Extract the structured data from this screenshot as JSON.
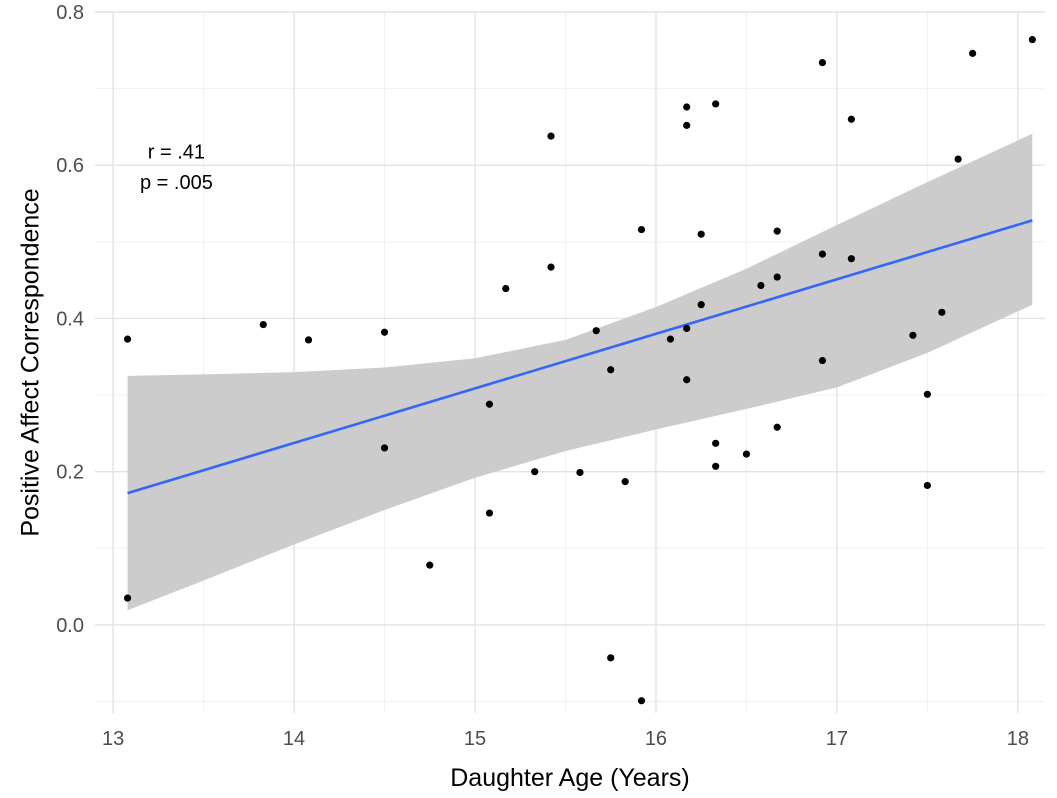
{
  "chart_data": {
    "type": "scatter",
    "title": "",
    "xlabel": "Daughter Age (Years)",
    "ylabel": "Positive Affect Correspondence",
    "xlim": [
      12.9,
      18.15
    ],
    "ylim": [
      -0.115,
      0.8
    ],
    "x_ticks": [
      13,
      14,
      15,
      16,
      17,
      18
    ],
    "x_tick_labels": [
      "13",
      "14",
      "15",
      "16",
      "17",
      "18"
    ],
    "y_ticks": [
      0.0,
      0.2,
      0.4,
      0.6,
      0.8
    ],
    "y_tick_labels": [
      "0.0",
      "0.2",
      "0.4",
      "0.6",
      "0.8"
    ],
    "grid": true,
    "annotation": {
      "line1": "r = .41",
      "line2": "p = .005",
      "x": 13.35,
      "y1": 0.618,
      "y2": 0.578
    },
    "points": [
      {
        "x": 13.08,
        "y": 0.373
      },
      {
        "x": 13.08,
        "y": 0.035
      },
      {
        "x": 13.83,
        "y": 0.392
      },
      {
        "x": 14.08,
        "y": 0.372
      },
      {
        "x": 14.5,
        "y": 0.382
      },
      {
        "x": 14.5,
        "y": 0.231
      },
      {
        "x": 14.75,
        "y": 0.078
      },
      {
        "x": 15.08,
        "y": 0.288
      },
      {
        "x": 15.08,
        "y": 0.146
      },
      {
        "x": 15.17,
        "y": 0.439
      },
      {
        "x": 15.33,
        "y": 0.2
      },
      {
        "x": 15.42,
        "y": 0.638
      },
      {
        "x": 15.42,
        "y": 0.467
      },
      {
        "x": 15.58,
        "y": 0.199
      },
      {
        "x": 15.67,
        "y": 0.384
      },
      {
        "x": 15.75,
        "y": 0.333
      },
      {
        "x": 15.75,
        "y": -0.043
      },
      {
        "x": 15.83,
        "y": 0.187
      },
      {
        "x": 15.92,
        "y": 0.516
      },
      {
        "x": 15.92,
        "y": -0.099
      },
      {
        "x": 16.08,
        "y": 0.373
      },
      {
        "x": 16.17,
        "y": 0.676
      },
      {
        "x": 16.17,
        "y": 0.652
      },
      {
        "x": 16.17,
        "y": 0.387
      },
      {
        "x": 16.17,
        "y": 0.32
      },
      {
        "x": 16.25,
        "y": 0.51
      },
      {
        "x": 16.25,
        "y": 0.418
      },
      {
        "x": 16.33,
        "y": 0.68
      },
      {
        "x": 16.33,
        "y": 0.237
      },
      {
        "x": 16.33,
        "y": 0.207
      },
      {
        "x": 16.5,
        "y": 0.223
      },
      {
        "x": 16.58,
        "y": 0.443
      },
      {
        "x": 16.67,
        "y": 0.514
      },
      {
        "x": 16.67,
        "y": 0.454
      },
      {
        "x": 16.67,
        "y": 0.258
      },
      {
        "x": 16.92,
        "y": 0.734
      },
      {
        "x": 16.92,
        "y": 0.484
      },
      {
        "x": 16.92,
        "y": 0.345
      },
      {
        "x": 17.08,
        "y": 0.66
      },
      {
        "x": 17.08,
        "y": 0.478
      },
      {
        "x": 17.42,
        "y": 0.378
      },
      {
        "x": 17.5,
        "y": 0.301
      },
      {
        "x": 17.5,
        "y": 0.182
      },
      {
        "x": 17.58,
        "y": 0.408
      },
      {
        "x": 17.67,
        "y": 0.608
      },
      {
        "x": 17.75,
        "y": 0.746
      },
      {
        "x": 18.08,
        "y": 0.764
      }
    ],
    "regression_line": {
      "x": [
        13.08,
        18.08
      ],
      "y": [
        0.172,
        0.528
      ],
      "color": "#3366ff"
    },
    "confidence_band": {
      "x": [
        13.08,
        13.5,
        14.0,
        14.5,
        15.0,
        15.5,
        16.0,
        16.5,
        17.0,
        17.5,
        18.08
      ],
      "upper": [
        0.325,
        0.327,
        0.33,
        0.336,
        0.348,
        0.372,
        0.415,
        0.465,
        0.522,
        0.578,
        0.641
      ],
      "lower": [
        0.019,
        0.058,
        0.105,
        0.15,
        0.192,
        0.227,
        0.255,
        0.282,
        0.31,
        0.355,
        0.418
      ],
      "color": "#cccccc"
    },
    "point_color": "#000000"
  }
}
